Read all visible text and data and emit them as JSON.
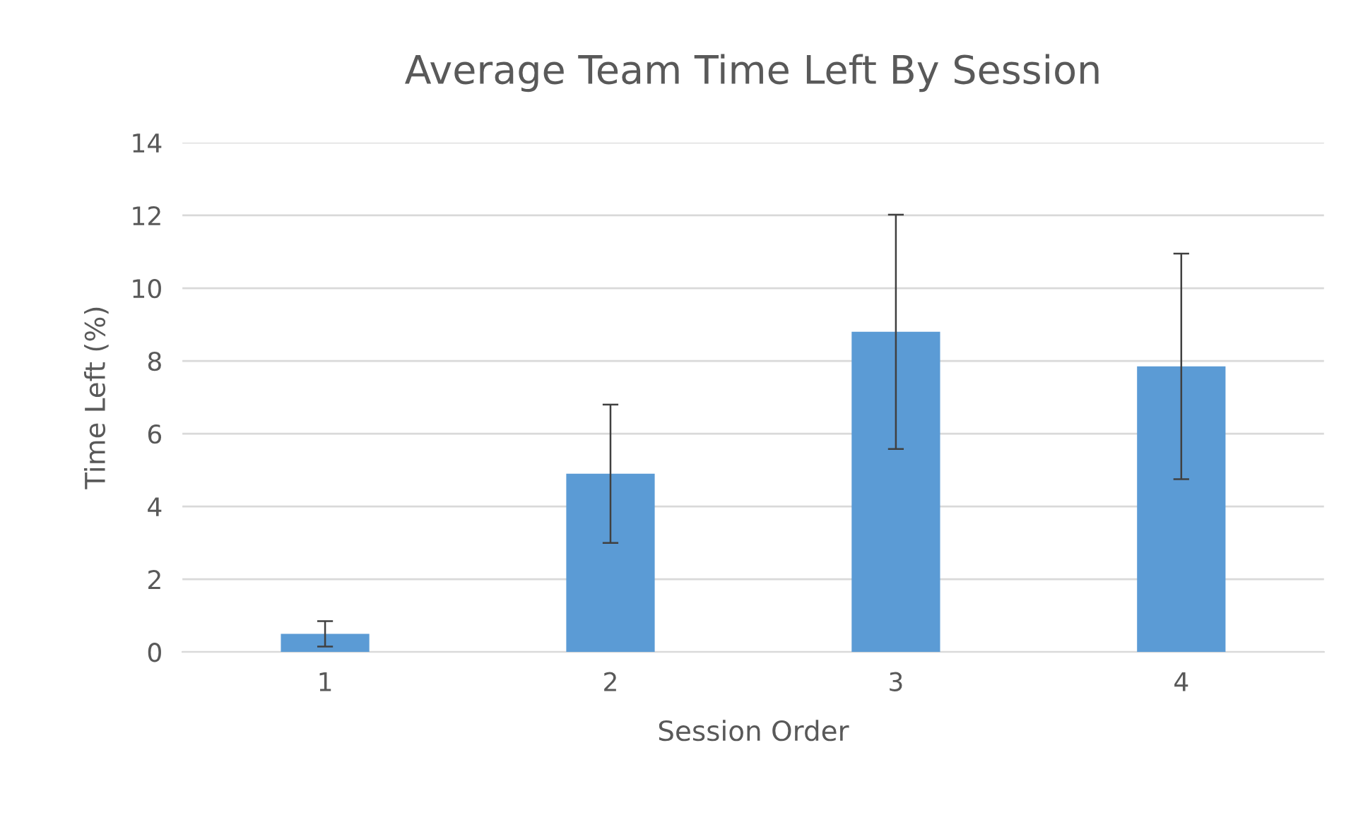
{
  "chart_data": {
    "type": "bar",
    "title": "Average Team Time Left By Session",
    "xlabel": "Session Order",
    "ylabel": "Time Left (%)",
    "categories": [
      "1",
      "2",
      "3",
      "4"
    ],
    "values": [
      0.5,
      4.9,
      8.8,
      7.85
    ],
    "errors": [
      0.35,
      1.9,
      3.22,
      3.1
    ],
    "color": "#5b9bd5",
    "ylim": [
      0,
      14
    ],
    "yticks": [
      0,
      2,
      4,
      6,
      8,
      10,
      12,
      14
    ],
    "grid": "y",
    "legend": false
  }
}
